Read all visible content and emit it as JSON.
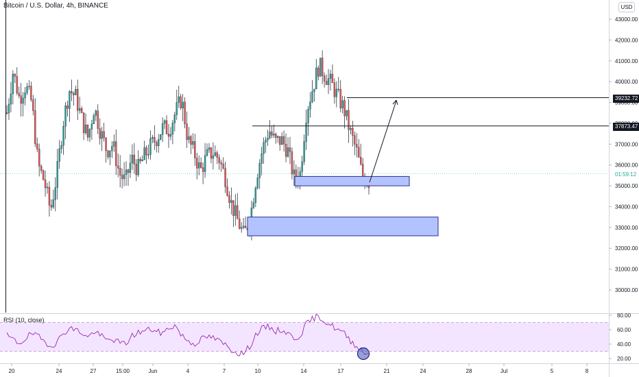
{
  "header": {
    "symbol_title": "Bitcoin / U.S. Dollar, 4h, BINANCE",
    "unit_label": "USD"
  },
  "price_tags": {
    "top_level": "39232.72",
    "mid_level": "37873.47",
    "countdown": "01:59:12"
  },
  "rsi_panel": {
    "label": "RSI (10, close)"
  },
  "colors": {
    "up": "#26a69a",
    "down": "#ef5350",
    "candle_body": "#2f3340",
    "zone_fill": "#b3c3ff",
    "zone_border": "#2a2f8f",
    "rsi_line": "#9c27b0",
    "rsi_band": "#f3e5ff"
  },
  "chart_data": [
    {
      "type": "candlestick",
      "title": "Bitcoin / U.S. Dollar, 4h, BINANCE",
      "y_axis_ticks": [
        30000,
        31000,
        32000,
        33000,
        34000,
        35000,
        36000,
        37000,
        38000,
        39000,
        40000,
        41000,
        42000,
        43000
      ],
      "ylim": [
        29400,
        43500
      ],
      "x_tick_labels": [
        "20",
        "24",
        "27",
        "15:00",
        "Jun",
        "4",
        "7",
        "10",
        "14",
        "17",
        "21",
        "24",
        "28",
        "Jul",
        "5",
        "8"
      ],
      "approx_close_path": [
        38500,
        40500,
        39200,
        39800,
        39000,
        36000,
        35200,
        33800,
        35500,
        38000,
        39600,
        39300,
        38200,
        37300,
        38800,
        37600,
        36700,
        37000,
        35600,
        35200,
        36300,
        35800,
        36400,
        36900,
        37300,
        37800,
        37700,
        38500,
        39200,
        37200,
        36600,
        35700,
        36400,
        36600,
        36300,
        35400,
        34100,
        33300,
        32600,
        33500,
        35500,
        36800,
        37700,
        37100,
        37200,
        36700,
        35400,
        35600,
        38600,
        39700,
        40800,
        40300,
        39900,
        39300,
        38700,
        37600,
        36700,
        35400,
        35200
      ],
      "levels": [
        39232.72,
        37873.47
      ],
      "zones": [
        {
          "low": 35000,
          "high": 35450
        },
        {
          "low": 32600,
          "high": 33500
        }
      ]
    },
    {
      "type": "line",
      "title": "RSI (10, close)",
      "y_axis_ticks": [
        20,
        40,
        60,
        80
      ],
      "ylim": [
        14,
        83
      ],
      "bands": [
        30,
        70
      ],
      "approx_values": [
        52,
        46,
        41,
        48,
        55,
        50,
        44,
        38,
        42,
        55,
        62,
        60,
        56,
        49,
        58,
        52,
        45,
        47,
        42,
        40,
        51,
        56,
        58,
        61,
        57,
        55,
        63,
        66,
        52,
        45,
        40,
        46,
        50,
        49,
        44,
        39,
        32,
        28,
        27,
        38,
        55,
        62,
        64,
        58,
        60,
        55,
        48,
        52,
        68,
        75,
        79,
        71,
        66,
        60,
        55,
        45,
        38,
        30,
        26
      ]
    }
  ]
}
